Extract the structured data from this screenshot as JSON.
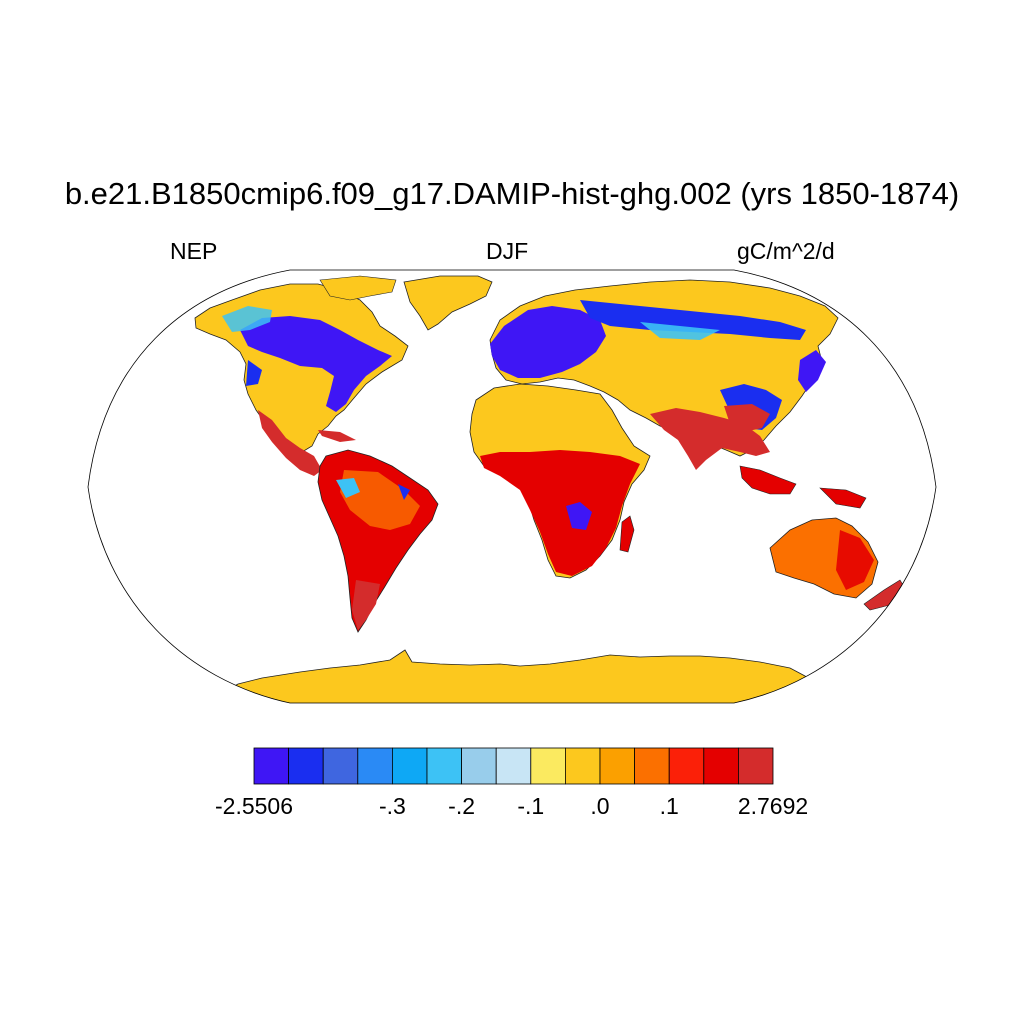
{
  "title": "b.e21.B1850cmip6.f09_g17.DAMIP-hist-ghg.002 (yrs 1850-1874)",
  "left_label": "NEP",
  "center_label": "DJF",
  "right_label": "gC/m^2/d",
  "colorbar": {
    "colors": [
      "#3f16f5",
      "#1a2ef0",
      "#3f66e0",
      "#2a8af5",
      "#0ea8f5",
      "#3dc2f5",
      "#98cdeb",
      "#c8e5f5",
      "#fbea60",
      "#fcc81e",
      "#fba000",
      "#fb7000",
      "#fb2008",
      "#e40000",
      "#d42c2c"
    ],
    "labels": [
      {
        "text": "-2.5506",
        "boundary": 0
      },
      {
        "text": "-.3",
        "boundary": 4
      },
      {
        "text": "-.2",
        "boundary": 6
      },
      {
        "text": "-.1",
        "boundary": 8
      },
      {
        "text": ".0",
        "boundary": 10
      },
      {
        "text": ".1",
        "boundary": 12
      },
      {
        "text": "2.7692",
        "boundary": 15
      }
    ]
  },
  "map": {
    "projection": "Robinson",
    "ocean_color": "#ffffff",
    "land_default_color": "#fcc81e"
  }
}
